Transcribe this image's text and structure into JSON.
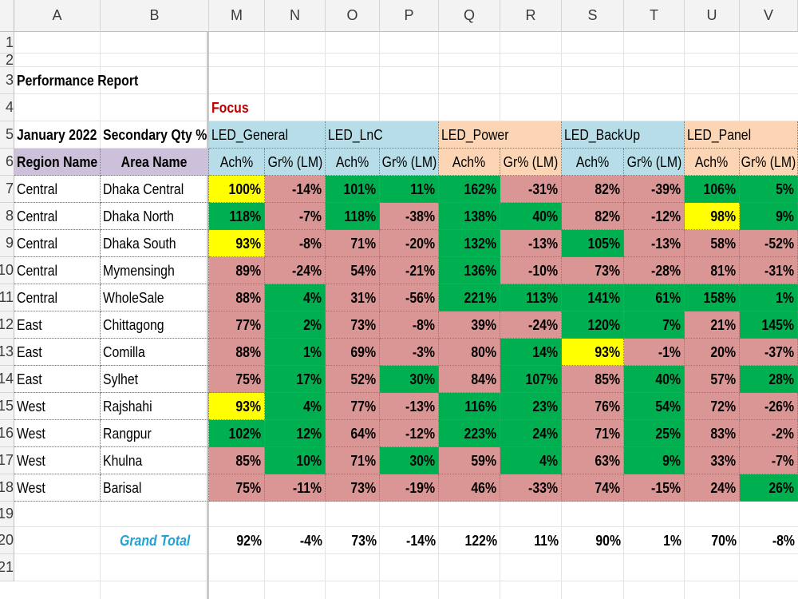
{
  "colors": {
    "green": "#00b050",
    "red": "#da9694",
    "yellow": "#ffff00",
    "blue_header": "#b7dee8",
    "orange_header": "#fcd5b4",
    "purple_header": "#ccc0da",
    "focus_text": "#c00000",
    "grand_total_text": "#1fa3d6"
  },
  "column_headers": [
    "A",
    "B",
    "M",
    "N",
    "O",
    "P",
    "Q",
    "R",
    "S",
    "T",
    "U",
    "V"
  ],
  "row_headers": [
    "1",
    "2",
    "3",
    "4",
    "5",
    "6",
    "7",
    "8",
    "9",
    "10",
    "11",
    "12",
    "13",
    "14",
    "15",
    "16",
    "17",
    "18",
    "19",
    "20",
    "21"
  ],
  "report_title": "Performance Report",
  "focus_label": "Focus",
  "period_label": "January 2022",
  "metric_label": "Secondary Qty %",
  "region_header": "Region Name",
  "area_header": "Area Name",
  "groups": [
    {
      "label": "LED_General",
      "color": "blue"
    },
    {
      "label": "LED_LnC",
      "color": "blue"
    },
    {
      "label": "LED_Power",
      "color": "orange"
    },
    {
      "label": "LED_BackUp",
      "color": "blue"
    },
    {
      "label": "LED_Panel",
      "color": "orange"
    }
  ],
  "sub_headers": [
    "Ach%",
    "Gr% (LM)"
  ],
  "rows": [
    {
      "region": "Central",
      "area": "Dhaka Central",
      "values": [
        "100%",
        "-14%",
        "101%",
        "11%",
        "162%",
        "-31%",
        "82%",
        "-39%",
        "106%",
        "5%"
      ],
      "colors": [
        "yellow",
        "red",
        "green",
        "green",
        "green",
        "red",
        "red",
        "red",
        "green",
        "green"
      ]
    },
    {
      "region": "Central",
      "area": "Dhaka North",
      "values": [
        "118%",
        "-7%",
        "118%",
        "-38%",
        "138%",
        "40%",
        "82%",
        "-12%",
        "98%",
        "9%"
      ],
      "colors": [
        "green",
        "red",
        "green",
        "red",
        "green",
        "green",
        "red",
        "red",
        "yellow",
        "green"
      ]
    },
    {
      "region": "Central",
      "area": "Dhaka South",
      "values": [
        "93%",
        "-8%",
        "71%",
        "-20%",
        "132%",
        "-13%",
        "105%",
        "-13%",
        "58%",
        "-52%"
      ],
      "colors": [
        "yellow",
        "red",
        "red",
        "red",
        "green",
        "red",
        "green",
        "red",
        "red",
        "red"
      ]
    },
    {
      "region": "Central",
      "area": "Mymensingh",
      "values": [
        "89%",
        "-24%",
        "54%",
        "-21%",
        "136%",
        "-10%",
        "73%",
        "-28%",
        "81%",
        "-31%"
      ],
      "colors": [
        "red",
        "red",
        "red",
        "red",
        "green",
        "red",
        "red",
        "red",
        "red",
        "red"
      ]
    },
    {
      "region": "Central",
      "area": "WholeSale",
      "values": [
        "88%",
        "4%",
        "31%",
        "-56%",
        "221%",
        "113%",
        "141%",
        "61%",
        "158%",
        "1%"
      ],
      "colors": [
        "red",
        "green",
        "red",
        "red",
        "green",
        "green",
        "green",
        "green",
        "green",
        "green"
      ]
    },
    {
      "region": "East",
      "area": "Chittagong",
      "values": [
        "77%",
        "2%",
        "73%",
        "-8%",
        "39%",
        "-24%",
        "120%",
        "7%",
        "21%",
        "145%"
      ],
      "colors": [
        "red",
        "green",
        "red",
        "red",
        "red",
        "red",
        "green",
        "green",
        "red",
        "green"
      ]
    },
    {
      "region": "East",
      "area": "Comilla",
      "values": [
        "88%",
        "1%",
        "69%",
        "-3%",
        "80%",
        "14%",
        "93%",
        "-1%",
        "20%",
        "-37%"
      ],
      "colors": [
        "red",
        "green",
        "red",
        "red",
        "red",
        "green",
        "yellow",
        "red",
        "red",
        "red"
      ]
    },
    {
      "region": "East",
      "area": "Sylhet",
      "values": [
        "75%",
        "17%",
        "52%",
        "30%",
        "84%",
        "107%",
        "85%",
        "40%",
        "57%",
        "28%"
      ],
      "colors": [
        "red",
        "green",
        "red",
        "green",
        "red",
        "green",
        "red",
        "green",
        "red",
        "green"
      ]
    },
    {
      "region": "West",
      "area": "Rajshahi",
      "values": [
        "93%",
        "4%",
        "77%",
        "-13%",
        "116%",
        "23%",
        "76%",
        "54%",
        "72%",
        "-26%"
      ],
      "colors": [
        "yellow",
        "green",
        "red",
        "red",
        "green",
        "green",
        "red",
        "green",
        "red",
        "red"
      ]
    },
    {
      "region": "West",
      "area": "Rangpur",
      "values": [
        "102%",
        "12%",
        "64%",
        "-12%",
        "223%",
        "24%",
        "71%",
        "25%",
        "83%",
        "-2%"
      ],
      "colors": [
        "green",
        "green",
        "red",
        "red",
        "green",
        "green",
        "red",
        "green",
        "red",
        "red"
      ]
    },
    {
      "region": "West",
      "area": "Khulna",
      "values": [
        "85%",
        "10%",
        "71%",
        "30%",
        "59%",
        "4%",
        "63%",
        "9%",
        "33%",
        "-7%"
      ],
      "colors": [
        "red",
        "green",
        "red",
        "green",
        "red",
        "green",
        "red",
        "green",
        "red",
        "red"
      ]
    },
    {
      "region": "West",
      "area": "Barisal",
      "values": [
        "75%",
        "-11%",
        "73%",
        "-19%",
        "46%",
        "-33%",
        "74%",
        "-15%",
        "24%",
        "26%"
      ],
      "colors": [
        "red",
        "red",
        "red",
        "red",
        "red",
        "red",
        "red",
        "red",
        "red",
        "green"
      ]
    }
  ],
  "grand_total": {
    "label": "Grand Total",
    "values": [
      "92%",
      "-4%",
      "73%",
      "-14%",
      "122%",
      "11%",
      "90%",
      "1%",
      "70%",
      "-8%"
    ]
  }
}
